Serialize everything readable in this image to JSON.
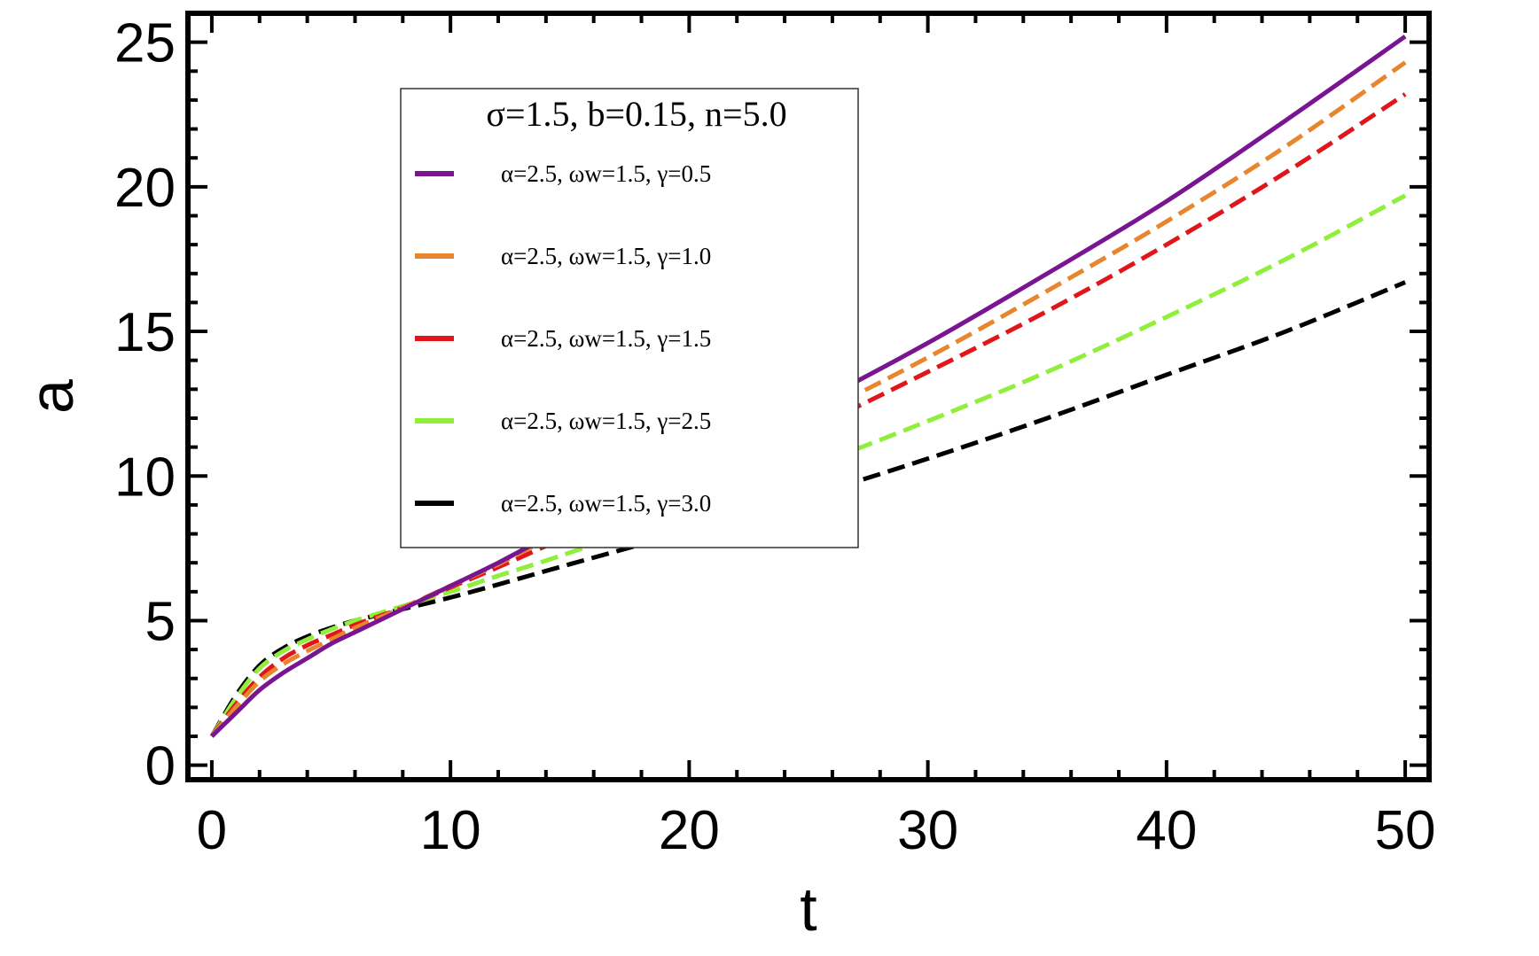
{
  "chart_data": {
    "type": "line",
    "xlabel": "t",
    "ylabel": "a",
    "xlim": [
      -1,
      51
    ],
    "ylim": [
      -0.5,
      26
    ],
    "xticks": [
      0,
      10,
      20,
      30,
      40,
      50
    ],
    "yticks": [
      0,
      5,
      10,
      15,
      20,
      25
    ],
    "legend": {
      "title": "σ=1.5, b=0.15, n=5.0",
      "placement": "upper-left-center"
    },
    "series": [
      {
        "name": "α=2.5, ωw=1.5, γ=0.5",
        "color": "#7a1592",
        "dashed": false,
        "x": [
          0,
          1,
          2,
          3,
          4,
          5,
          6,
          7,
          8,
          10,
          12,
          15,
          20,
          25,
          30,
          35,
          40,
          45,
          50
        ],
        "y": [
          1.0,
          1.8,
          2.6,
          3.2,
          3.7,
          4.2,
          4.6,
          5.0,
          5.4,
          6.2,
          7.0,
          8.3,
          10.3,
          12.4,
          14.6,
          17.0,
          19.5,
          22.3,
          25.2
        ]
      },
      {
        "name": "α=2.5, ωw=1.5, γ=1.0",
        "color": "#e8862e",
        "dashed": true,
        "x": [
          0,
          1,
          2,
          3,
          4,
          5,
          6,
          7,
          8,
          10,
          12,
          15,
          20,
          25,
          30,
          35,
          40,
          45,
          50
        ],
        "y": [
          1.0,
          2.0,
          2.9,
          3.5,
          3.95,
          4.35,
          4.75,
          5.1,
          5.45,
          6.2,
          6.95,
          8.2,
          10.1,
          12.0,
          14.1,
          16.4,
          18.8,
          21.4,
          24.3
        ]
      },
      {
        "name": "α=2.5, ωw=1.5, γ=1.5",
        "color": "#e0161b",
        "dashed": true,
        "x": [
          0,
          1,
          2,
          3,
          4,
          5,
          6,
          7,
          8,
          10,
          12,
          15,
          20,
          25,
          30,
          35,
          40,
          45,
          50
        ],
        "y": [
          1.0,
          2.1,
          3.05,
          3.7,
          4.15,
          4.5,
          4.85,
          5.15,
          5.45,
          6.15,
          6.85,
          7.95,
          9.8,
          11.6,
          13.6,
          15.7,
          18.0,
          20.5,
          23.2
        ]
      },
      {
        "name": "α=2.5, ωw=1.5, γ=2.5",
        "color": "#8fef3b",
        "dashed": true,
        "x": [
          0,
          1,
          2,
          3,
          4,
          5,
          6,
          7,
          8,
          10,
          12,
          15,
          20,
          25,
          30,
          35,
          40,
          45,
          50
        ],
        "y": [
          1.0,
          2.3,
          3.35,
          3.95,
          4.35,
          4.7,
          5.0,
          5.25,
          5.5,
          6.0,
          6.55,
          7.35,
          8.8,
          10.3,
          11.9,
          13.6,
          15.5,
          17.5,
          19.7
        ]
      },
      {
        "name": "α=2.5, ωw=1.5, γ=3.0",
        "color": "#000000",
        "dashed": true,
        "x": [
          0,
          1,
          2,
          3,
          4,
          5,
          6,
          7,
          8,
          10,
          12,
          15,
          20,
          25,
          30,
          35,
          40,
          45,
          50
        ],
        "y": [
          1.0,
          2.4,
          3.45,
          4.05,
          4.45,
          4.75,
          5.0,
          5.2,
          5.4,
          5.8,
          6.25,
          6.95,
          8.1,
          9.3,
          10.6,
          12.0,
          13.5,
          15.0,
          16.7
        ]
      }
    ]
  }
}
